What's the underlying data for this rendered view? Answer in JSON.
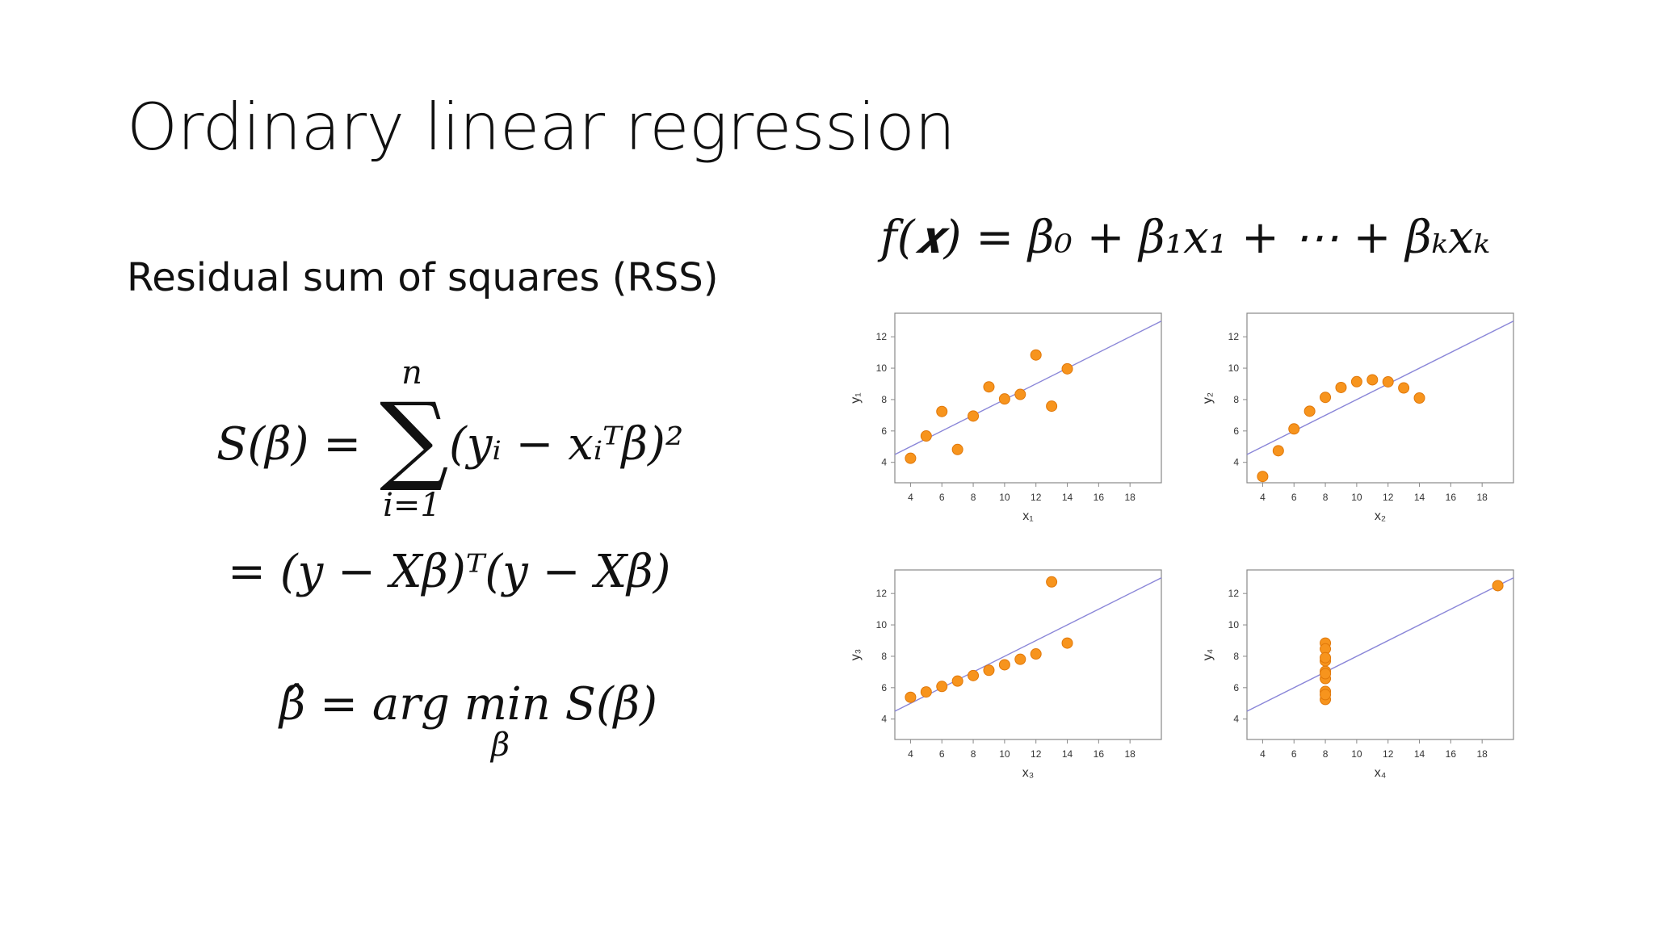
{
  "slide": {
    "title": "Ordinary linear regression",
    "rss_label": "Residual sum of squares (RSS)"
  },
  "equations": {
    "model": "f(𝒙) = β₀ + β₁x₁ + ⋯ + βₖxₖ",
    "rss_lhs": "S(β) =",
    "rss_sum_top": "n",
    "rss_sum_bottom": "i=1",
    "rss_summand": "(yᵢ − xᵢᵀβ)²",
    "rss_matrix": "= (y − Xβ)ᵀ(y − Xβ)",
    "argmin": "β̂ = arg min S(β)",
    "argmin_sub": "β"
  },
  "colors": {
    "point_fill": "#f7941d",
    "point_stroke": "#e0780a",
    "line": "#8a86d8",
    "frame": "#888888"
  },
  "chart_data": [
    {
      "type": "scatter",
      "xlabel": "x₁",
      "ylabel": "y₁",
      "xlim": [
        3,
        20
      ],
      "ylim": [
        2.7,
        13.5
      ],
      "xticks": [
        4,
        6,
        8,
        10,
        12,
        14,
        16,
        18
      ],
      "yticks": [
        4,
        6,
        8,
        10,
        12
      ],
      "x": [
        10,
        8,
        13,
        9,
        11,
        14,
        6,
        4,
        12,
        7,
        5
      ],
      "y": [
        8.04,
        6.95,
        7.58,
        8.81,
        8.33,
        9.96,
        7.24,
        4.26,
        10.84,
        4.82,
        5.68
      ],
      "fit": {
        "intercept": 3.0,
        "slope": 0.5
      }
    },
    {
      "type": "scatter",
      "xlabel": "x₂",
      "ylabel": "y₂",
      "xlim": [
        3,
        20
      ],
      "ylim": [
        2.7,
        13.5
      ],
      "xticks": [
        4,
        6,
        8,
        10,
        12,
        14,
        16,
        18
      ],
      "yticks": [
        4,
        6,
        8,
        10,
        12
      ],
      "x": [
        10,
        8,
        13,
        9,
        11,
        14,
        6,
        4,
        12,
        7,
        5
      ],
      "y": [
        9.14,
        8.14,
        8.74,
        8.77,
        9.26,
        8.1,
        6.13,
        3.1,
        9.13,
        7.26,
        4.74
      ],
      "fit": {
        "intercept": 3.0,
        "slope": 0.5
      }
    },
    {
      "type": "scatter",
      "xlabel": "x₃",
      "ylabel": "y₃",
      "xlim": [
        3,
        20
      ],
      "ylim": [
        2.7,
        13.5
      ],
      "xticks": [
        4,
        6,
        8,
        10,
        12,
        14,
        16,
        18
      ],
      "yticks": [
        4,
        6,
        8,
        10,
        12
      ],
      "x": [
        10,
        8,
        13,
        9,
        11,
        14,
        6,
        4,
        12,
        7,
        5
      ],
      "y": [
        7.46,
        6.77,
        12.74,
        7.11,
        7.81,
        8.84,
        6.08,
        5.39,
        8.15,
        6.42,
        5.73
      ],
      "fit": {
        "intercept": 3.0,
        "slope": 0.5
      }
    },
    {
      "type": "scatter",
      "xlabel": "x₄",
      "ylabel": "y₄",
      "xlim": [
        3,
        20
      ],
      "ylim": [
        2.7,
        13.5
      ],
      "xticks": [
        4,
        6,
        8,
        10,
        12,
        14,
        16,
        18
      ],
      "yticks": [
        4,
        6,
        8,
        10,
        12
      ],
      "x": [
        8,
        8,
        8,
        8,
        8,
        8,
        8,
        19,
        8,
        8,
        8
      ],
      "y": [
        6.58,
        5.76,
        7.71,
        8.84,
        8.47,
        7.04,
        5.25,
        12.5,
        5.56,
        7.91,
        6.89
      ],
      "fit": {
        "intercept": 3.0,
        "slope": 0.5
      }
    }
  ]
}
